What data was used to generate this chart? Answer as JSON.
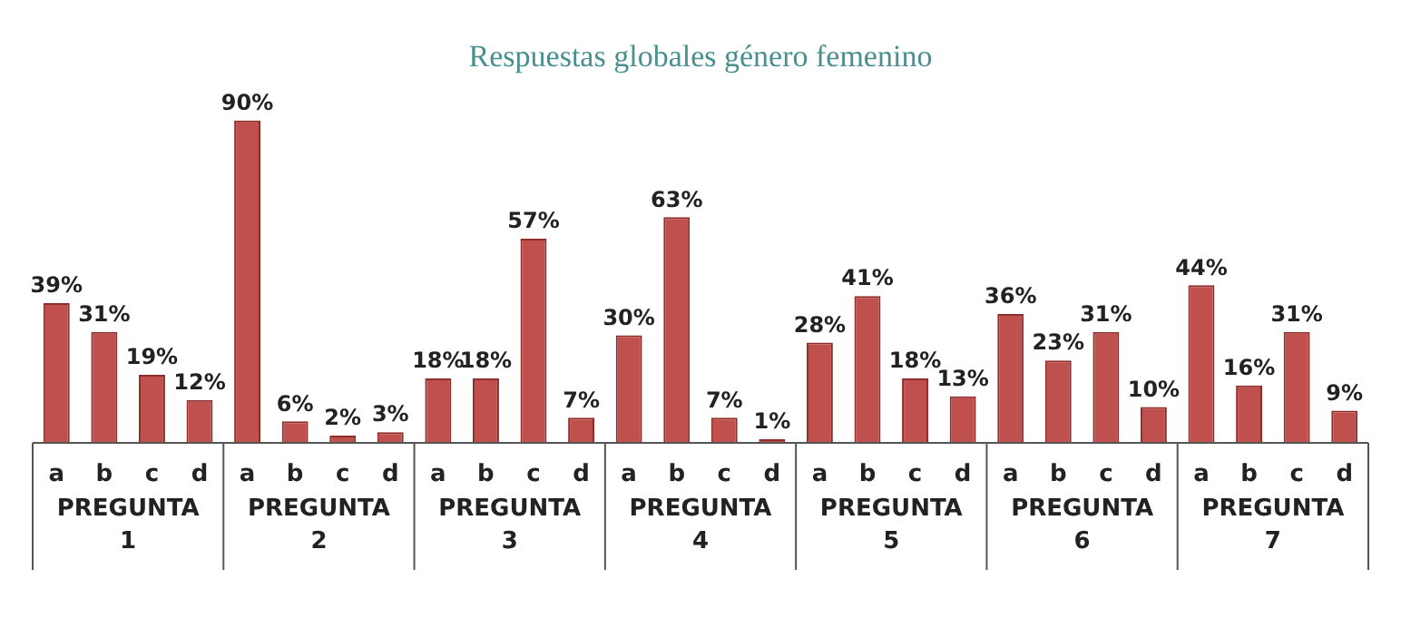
{
  "chart_data": {
    "type": "bar",
    "title": "Respuestas globales género femenino",
    "categories": [
      "a",
      "b",
      "c",
      "d",
      "a",
      "b",
      "c",
      "d",
      "a",
      "b",
      "c",
      "d",
      "a",
      "b",
      "c",
      "d",
      "a",
      "b",
      "c",
      "d",
      "a",
      "b",
      "c",
      "d",
      "a",
      "b",
      "c",
      "d"
    ],
    "values": [
      39,
      31,
      19,
      12,
      90,
      6,
      2,
      3,
      18,
      18,
      57,
      7,
      30,
      63,
      7,
      1,
      28,
      41,
      18,
      13,
      36,
      23,
      31,
      10,
      44,
      16,
      31,
      9
    ],
    "value_labels": [
      "39%",
      "31%",
      "19%",
      "12%",
      "90%",
      "6%",
      "2%",
      "3%",
      "18%",
      "18%",
      "57%",
      "7%",
      "30%",
      "63%",
      "7%",
      "1%",
      "28%",
      "41%",
      "18%",
      "13%",
      "36%",
      "23%",
      "31%",
      "10%",
      "44%",
      "16%",
      "31%",
      "9%"
    ],
    "color": "#c0504d",
    "annotations": [
      "PREGUNTA 1",
      "PREGUNTA 2",
      "PREGUNTA 3",
      "PREGUNTA 4",
      "PREGUNTA 5",
      "PREGUNTA 6",
      "PREGUNTA 7"
    ],
    "tick_labels": "x",
    "grid": false,
    "legend": false
  }
}
